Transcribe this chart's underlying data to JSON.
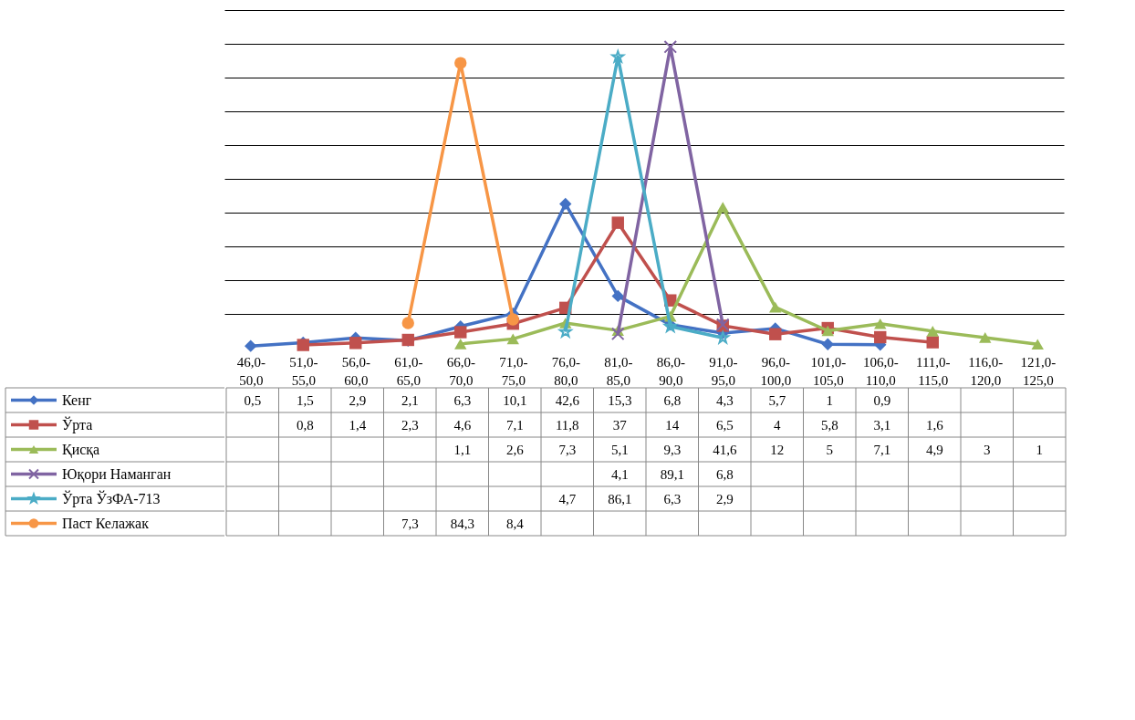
{
  "chart_data": {
    "type": "line",
    "categories": [
      "46,0-50,0",
      "51,0-55,0",
      "56,0-60,0",
      "61,0-65,0",
      "66,0-70,0",
      "71,0-75,0",
      "76,0-80,0",
      "81,0-85,0",
      "86,0-90,0",
      "91,0-95,0",
      "96,0-100,0",
      "101,0-105,0",
      "106,0-110,0",
      "111,0-115,0",
      "116,0-120,0",
      "121,0-125,0"
    ],
    "series": [
      {
        "name": "Кенг",
        "color": "#4472c4",
        "marker": "diamond",
        "values": [
          0.5,
          1.5,
          2.9,
          2.1,
          6.3,
          10.1,
          42.6,
          15.3,
          6.8,
          4.3,
          5.7,
          1,
          0.9,
          null,
          null,
          null
        ],
        "value_labels": [
          "0,5",
          "1,5",
          "2,9",
          "2,1",
          "6,3",
          "10,1",
          "42,6",
          "15,3",
          "6,8",
          "4,3",
          "5,7",
          "1",
          "0,9",
          null,
          null,
          null
        ]
      },
      {
        "name": "Ўрта",
        "color": "#c0504d",
        "marker": "square",
        "values": [
          null,
          0.8,
          1.4,
          2.3,
          4.6,
          7.1,
          11.8,
          37,
          14,
          6.5,
          4,
          5.8,
          3.1,
          1.6,
          null,
          null
        ],
        "value_labels": [
          null,
          "0,8",
          "1,4",
          "2,3",
          "4,6",
          "7,1",
          "11,8",
          "37",
          "14",
          "6,5",
          "4",
          "5,8",
          "3,1",
          "1,6",
          null,
          null
        ]
      },
      {
        "name": "Қисқа",
        "color": "#9bbb59",
        "marker": "triangle",
        "values": [
          null,
          null,
          null,
          null,
          1.1,
          2.6,
          7.3,
          5.1,
          9.3,
          41.6,
          12,
          5,
          7.1,
          4.9,
          3,
          1
        ],
        "value_labels": [
          null,
          null,
          null,
          null,
          "1,1",
          "2,6",
          "7,3",
          "5,1",
          "9,3",
          "41,6",
          "12",
          "5",
          "7,1",
          "4,9",
          "3",
          "1"
        ]
      },
      {
        "name": "Юқори Наманган",
        "color": "#8064a2",
        "marker": "cross",
        "values": [
          null,
          null,
          null,
          null,
          null,
          null,
          null,
          4.1,
          89.1,
          6.8,
          null,
          null,
          null,
          null,
          null,
          null
        ],
        "value_labels": [
          null,
          null,
          null,
          null,
          null,
          null,
          null,
          "4,1",
          "89,1",
          "6,8",
          null,
          null,
          null,
          null,
          null,
          null
        ]
      },
      {
        "name": "Ўрта ЎзФА-713",
        "color": "#4bacc6",
        "marker": "star",
        "values": [
          null,
          null,
          null,
          null,
          null,
          null,
          4.7,
          86.1,
          6.3,
          2.9,
          null,
          null,
          null,
          null,
          null,
          null
        ],
        "value_labels": [
          null,
          null,
          null,
          null,
          null,
          null,
          "4,7",
          "86,1",
          "6,3",
          "2,9",
          null,
          null,
          null,
          null,
          null,
          null
        ]
      },
      {
        "name": "Паст  Келажак",
        "color": "#f79646",
        "marker": "circle",
        "values": [
          null,
          null,
          null,
          7.3,
          84.3,
          8.4,
          null,
          null,
          null,
          null,
          null,
          null,
          null,
          null,
          null,
          null
        ],
        "value_labels": [
          null,
          null,
          null,
          "7,3",
          "84,3",
          "8,4",
          null,
          null,
          null,
          null,
          null,
          null,
          null,
          null,
          null,
          null
        ]
      }
    ],
    "yticks": [
      {
        "value": 10,
        "label": null
      },
      {
        "value": 20,
        "label": null
      },
      {
        "value": 30,
        "label": null
      },
      {
        "value": 40,
        "label": null
      },
      {
        "value": 50,
        "label": null
      },
      {
        "value": 60,
        "label": null
      },
      {
        "value": 70,
        "label": null
      },
      {
        "value": 80,
        "label": null
      },
      {
        "value": 90,
        "label": null
      },
      {
        "value": 100,
        "label": null
      }
    ],
    "grid": "y",
    "tick_labels": "x",
    "legend": "bottom",
    "line_style": "solid"
  }
}
